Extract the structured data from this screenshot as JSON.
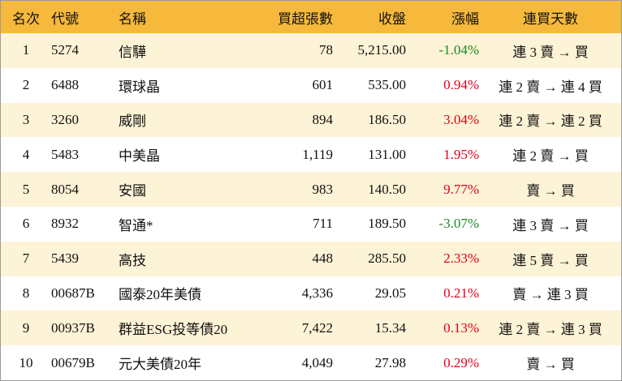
{
  "headers": {
    "rank": "名次",
    "code": "代號",
    "name": "名稱",
    "volume": "買超張數",
    "close": "收盤",
    "change": "漲幅",
    "days": "連買天數"
  },
  "colors": {
    "header_bg": "#f6b93b",
    "row_alt": "#fdf3d6",
    "positive": "#e0001b",
    "negative": "#1a8a28"
  },
  "rows": [
    {
      "rank": "1",
      "code": "5274",
      "name": "信驊",
      "volume": "78",
      "close": "5,215.00",
      "change": "-1.04%",
      "days": "連 3 賣 → 買"
    },
    {
      "rank": "2",
      "code": "6488",
      "name": "環球晶",
      "volume": "601",
      "close": "535.00",
      "change": "0.94%",
      "days": "連 2 賣 → 連 4 買"
    },
    {
      "rank": "3",
      "code": "3260",
      "name": "威剛",
      "volume": "894",
      "close": "186.50",
      "change": "3.04%",
      "days": "連 2 賣 → 連 2 買"
    },
    {
      "rank": "4",
      "code": "5483",
      "name": "中美晶",
      "volume": "1,119",
      "close": "131.00",
      "change": "1.95%",
      "days": "連 2 賣 → 買"
    },
    {
      "rank": "5",
      "code": "8054",
      "name": "安國",
      "volume": "983",
      "close": "140.50",
      "change": "9.77%",
      "days": "賣 → 買"
    },
    {
      "rank": "6",
      "code": "8932",
      "name": "智通*",
      "volume": "711",
      "close": "189.50",
      "change": "-3.07%",
      "days": "連 3 賣 → 買"
    },
    {
      "rank": "7",
      "code": "5439",
      "name": "高技",
      "volume": "448",
      "close": "285.50",
      "change": "2.33%",
      "days": "連 5 賣 → 買"
    },
    {
      "rank": "8",
      "code": "00687B",
      "name": "國泰20年美債",
      "volume": "4,336",
      "close": "29.05",
      "change": "0.21%",
      "days": "賣 → 連 3 買"
    },
    {
      "rank": "9",
      "code": "00937B",
      "name": "群益ESG投等債20",
      "volume": "7,422",
      "close": "15.34",
      "change": "0.13%",
      "days": "連 2 賣 → 連 3 買"
    },
    {
      "rank": "10",
      "code": "00679B",
      "name": "元大美債20年",
      "volume": "4,049",
      "close": "27.98",
      "change": "0.29%",
      "days": "賣 → 買"
    }
  ]
}
